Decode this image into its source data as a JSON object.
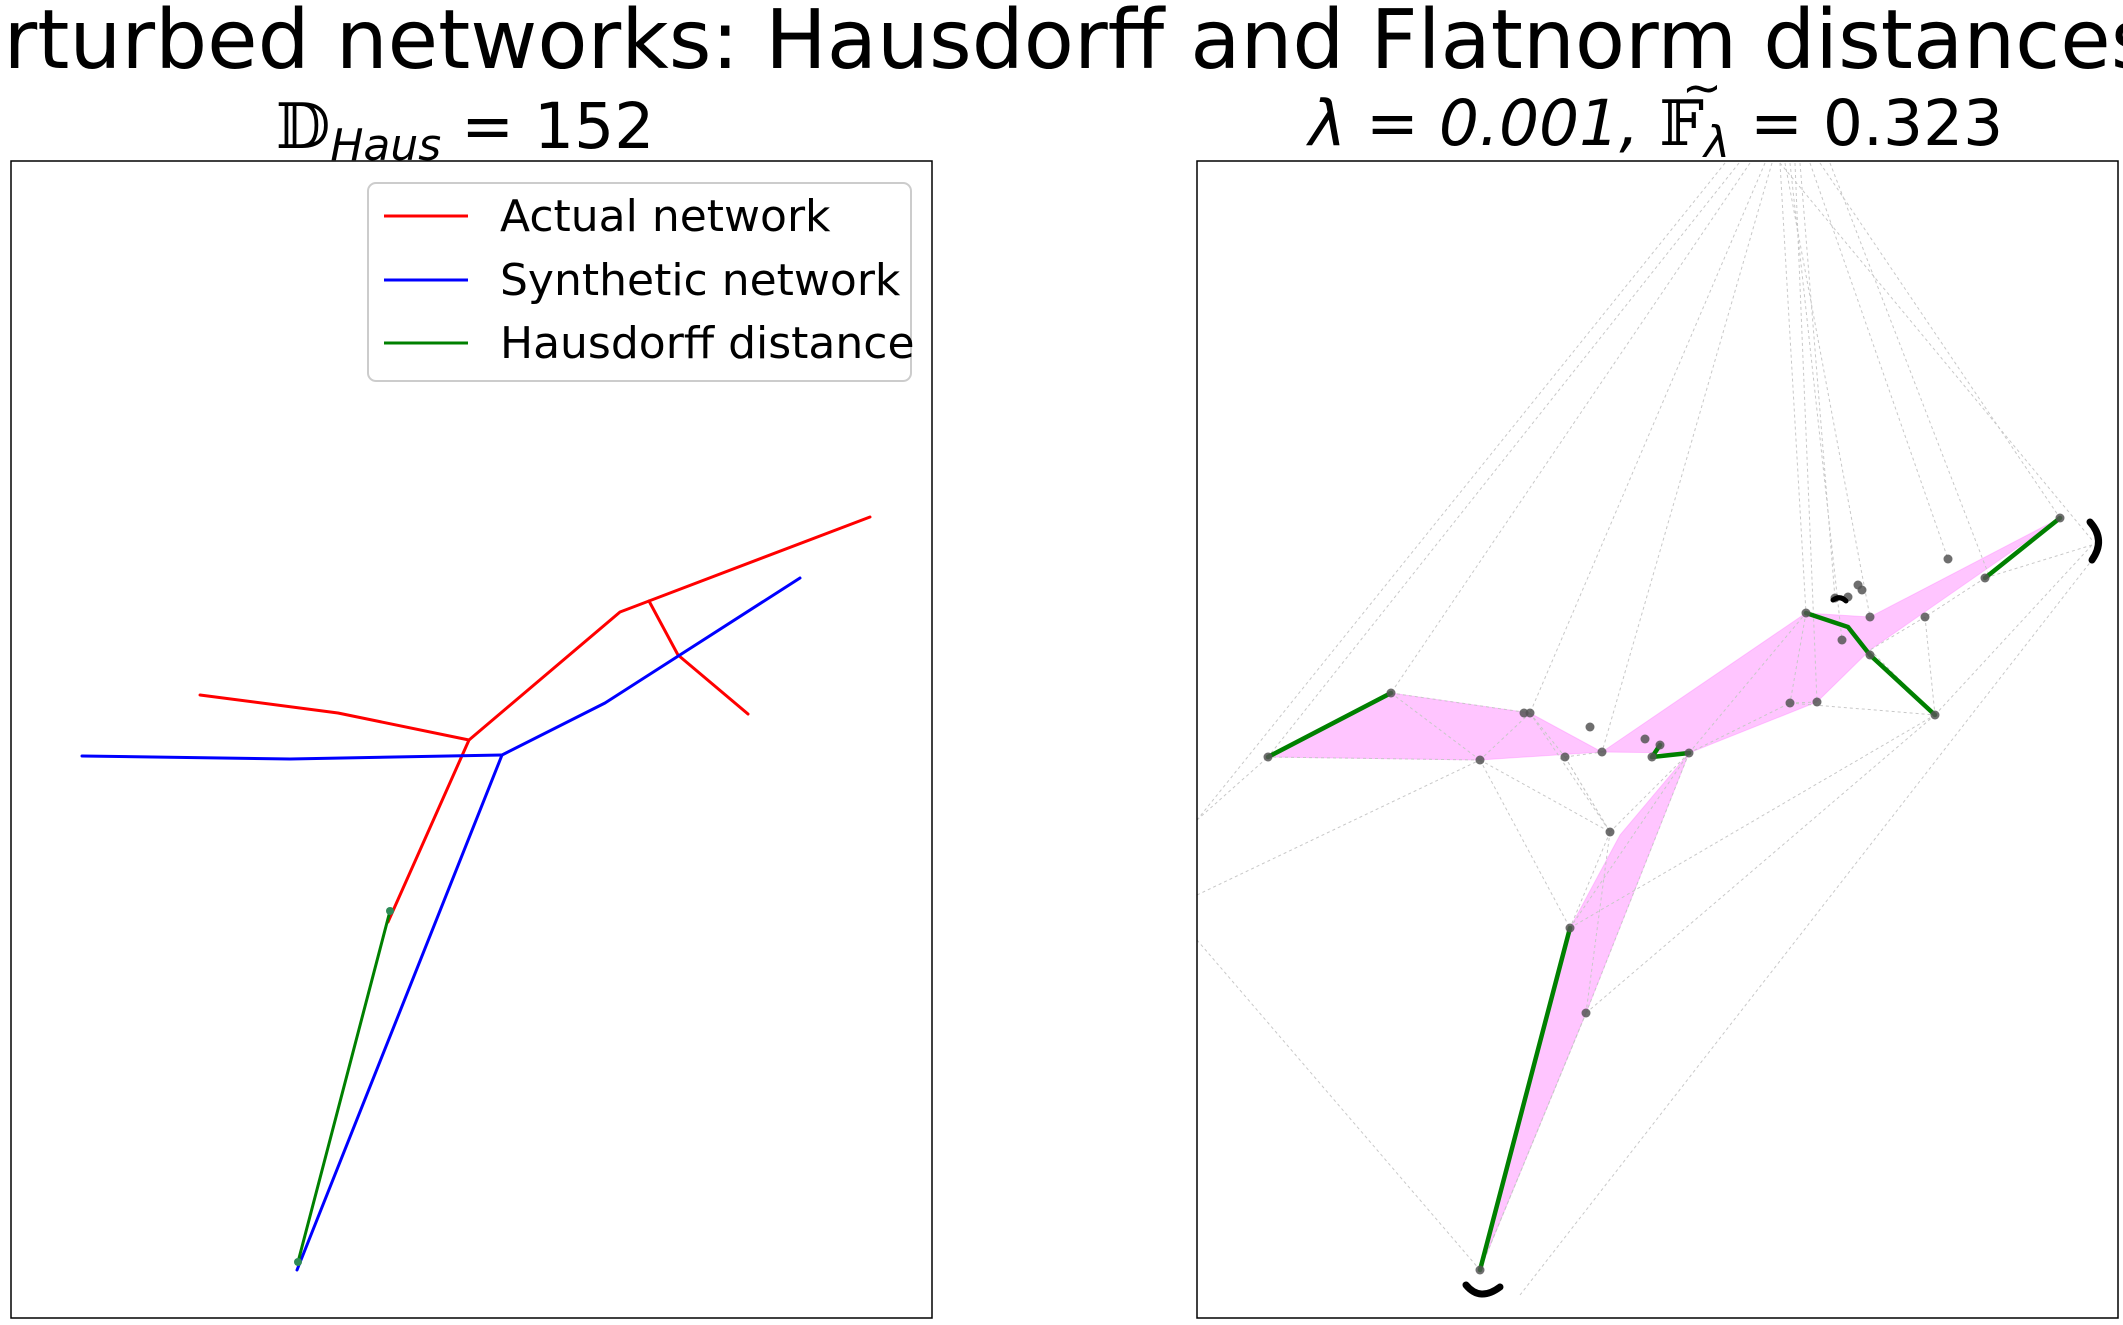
{
  "title": "Perturbed networks: Hausdorff and Flatnorm distances",
  "chart_data": [
    {
      "type": "line",
      "title": "𝔻Haus = 152",
      "title_parts": {
        "symbol": "𝔻",
        "subscript": "Haus",
        "rest": " = 152"
      },
      "axes": {
        "ticks": false,
        "grid": false
      },
      "legend": {
        "position": "top-right",
        "entries": [
          {
            "label": "Actual network",
            "color": "#ff0000"
          },
          {
            "label": "Synthetic network",
            "color": "#0000ff"
          },
          {
            "label": "Hausdorff distance",
            "color": "#008000"
          }
        ]
      },
      "series": [
        {
          "name": "Actual network",
          "color": "#ff0000",
          "segments": [
            [
              [
                200,
                695
              ],
              [
                338,
                713
              ],
              [
                469,
                740
              ]
            ],
            [
              [
                469,
                740
              ],
              [
                620,
                612
              ],
              [
                870,
                517
              ]
            ],
            [
              [
                649,
                601
              ],
              [
                678,
                655
              ],
              [
                748,
                714
              ]
            ],
            [
              [
                469,
                740
              ],
              [
                388,
                922
              ]
            ]
          ]
        },
        {
          "name": "Synthetic network",
          "color": "#0000ff",
          "segments": [
            [
              [
                82,
                756
              ],
              [
                290,
                759
              ],
              [
                502,
                755
              ]
            ],
            [
              [
                502,
                755
              ],
              [
                605,
                703
              ],
              [
                800,
                578
              ]
            ],
            [
              [
                502,
                755
              ],
              [
                297,
                1270
              ]
            ]
          ]
        },
        {
          "name": "Hausdorff distance",
          "color": "#008000",
          "segments": [
            [
              [
                390,
                911
              ],
              [
                298,
                1262
              ]
            ]
          ]
        }
      ]
    },
    {
      "type": "scatter",
      "title": "λ = 0.001, 𝔽λ = 0.323",
      "title_parts": {
        "lambda_part": "λ = 0.001, ",
        "symbol": "𝔽",
        "tilde": "~",
        "subscript": "λ",
        "rest": " = 0.323"
      },
      "axes": {
        "ticks": false,
        "grid": false
      },
      "series": [
        {
          "name": "",
          "color": "#ff66ff",
          "kind": "region",
          "polygons": [
            [
              [
                1268,
                757
              ],
              [
                1391,
                693
              ],
              [
                1530,
                713
              ],
              [
                1602,
                752
              ],
              [
                1480,
                760
              ]
            ],
            [
              [
                1602,
                752
              ],
              [
                1806,
                613
              ],
              [
                1870,
                617
              ],
              [
                2060,
                518
              ],
              [
                1870,
                650
              ],
              [
                1817,
                702
              ],
              [
                1689,
                753
              ]
            ],
            [
              [
                1689,
                753
              ],
              [
                1620,
                835
              ],
              [
                1570,
                928
              ],
              [
                1480,
                1270
              ],
              [
                1586,
                1013
              ]
            ]
          ]
        },
        {
          "name": "",
          "color": "#c8c8c8",
          "kind": "mesh",
          "segments": [
            [
              [
                1739,
                163
              ],
              [
                1268,
                757
              ]
            ],
            [
              [
                1750,
                163
              ],
              [
                1391,
                693
              ]
            ],
            [
              [
                1765,
                163
              ],
              [
                1530,
                713
              ]
            ],
            [
              [
                1772,
                163
              ],
              [
                1602,
                752
              ]
            ],
            [
              [
                1780,
                163
              ],
              [
                1806,
                613
              ]
            ],
            [
              [
                1785,
                163
              ],
              [
                1870,
                617
              ]
            ],
            [
              [
                1790,
                163
              ],
              [
                1842,
                640
              ]
            ],
            [
              [
                1795,
                163
              ],
              [
                1817,
                702
              ]
            ],
            [
              [
                1800,
                163
              ],
              [
                1835,
                598
              ]
            ],
            [
              [
                1810,
                163
              ],
              [
                1948,
                559
              ]
            ],
            [
              [
                1820,
                163
              ],
              [
                2060,
                518
              ]
            ],
            [
              [
                1830,
                163
              ],
              [
                1990,
                578
              ]
            ],
            [
              [
                1725,
                163
              ],
              [
                1197,
                820
              ]
            ],
            [
              [
                1780,
                163
              ],
              [
                2092,
                540
              ]
            ],
            [
              [
                1197,
                820
              ],
              [
                1268,
                757
              ]
            ],
            [
              [
                1197,
                895
              ],
              [
                1480,
                760
              ]
            ],
            [
              [
                1197,
                940
              ],
              [
                1480,
                1270
              ]
            ],
            [
              [
                1268,
                757
              ],
              [
                1391,
                693
              ]
            ],
            [
              [
                1391,
                693
              ],
              [
                1480,
                760
              ]
            ],
            [
              [
                1480,
                760
              ],
              [
                1268,
                757
              ]
            ],
            [
              [
                1391,
                693
              ],
              [
                1530,
                713
              ]
            ],
            [
              [
                1530,
                713
              ],
              [
                1565,
                757
              ]
            ],
            [
              [
                1565,
                757
              ],
              [
                1602,
                752
              ]
            ],
            [
              [
                1530,
                713
              ],
              [
                1480,
                760
              ]
            ],
            [
              [
                1565,
                757
              ],
              [
                1610,
                832
              ]
            ],
            [
              [
                1610,
                832
              ],
              [
                1570,
                928
              ]
            ],
            [
              [
                1480,
                760
              ],
              [
                1570,
                928
              ]
            ],
            [
              [
                1570,
                928
              ],
              [
                1480,
                1270
              ]
            ],
            [
              [
                1586,
                1013
              ],
              [
                1480,
                1270
              ]
            ],
            [
              [
                1586,
                1013
              ],
              [
                1689,
                753
              ]
            ],
            [
              [
                1586,
                1013
              ],
              [
                1935,
                715
              ]
            ],
            [
              [
                1689,
                753
              ],
              [
                1806,
                613
              ]
            ],
            [
              [
                1689,
                753
              ],
              [
                1790,
                703
              ]
            ],
            [
              [
                1790,
                703
              ],
              [
                1935,
                715
              ]
            ],
            [
              [
                1935,
                715
              ],
              [
                2092,
                545
              ]
            ],
            [
              [
                1925,
                617
              ],
              [
                1935,
                715
              ]
            ],
            [
              [
                1870,
                650
              ],
              [
                1935,
                715
              ]
            ],
            [
              [
                1806,
                613
              ],
              [
                1790,
                703
              ]
            ],
            [
              [
                2060,
                518
              ],
              [
                1985,
                578
              ]
            ],
            [
              [
                1985,
                578
              ],
              [
                1925,
                617
              ]
            ],
            [
              [
                1925,
                617
              ],
              [
                1870,
                650
              ]
            ],
            [
              [
                2092,
                545
              ],
              [
                1985,
                578
              ]
            ],
            [
              [
                1790,
                703
              ],
              [
                1817,
                702
              ]
            ],
            [
              [
                1610,
                832
              ],
              [
                1689,
                753
              ]
            ],
            [
              [
                1565,
                757
              ],
              [
                1610,
                832
              ]
            ],
            [
              [
                1530,
                713
              ],
              [
                1610,
                832
              ]
            ],
            [
              [
                1480,
                760
              ],
              [
                1610,
                832
              ]
            ],
            [
              [
                1570,
                928
              ],
              [
                1935,
                715
              ]
            ],
            [
              [
                1480,
                1270
              ],
              [
                1586,
                1013
              ]
            ],
            [
              [
                1610,
                832
              ],
              [
                1586,
                1013
              ]
            ],
            [
              [
                1520,
                1295
              ],
              [
                2092,
                560
              ]
            ],
            [
              [
                1570,
                928
              ],
              [
                1689,
                753
              ]
            ]
          ]
        },
        {
          "name": "",
          "color": "#008000",
          "kind": "flow",
          "segments": [
            [
              [
                1268,
                757
              ],
              [
                1391,
                693
              ]
            ],
            [
              [
                2060,
                518
              ],
              [
                1985,
                578
              ]
            ],
            [
              [
                1806,
                613
              ],
              [
                1848,
                627
              ],
              [
                1870,
                655
              ],
              [
                1935,
                715
              ]
            ],
            [
              [
                1660,
                745
              ],
              [
                1652,
                757
              ]
            ],
            [
              [
                1652,
                757
              ],
              [
                1689,
                753
              ]
            ],
            [
              [
                1570,
                928
              ],
              [
                1480,
                1270
              ]
            ]
          ]
        },
        {
          "name": "",
          "color": "#555555",
          "kind": "nodes",
          "points": [
            [
              1268,
              757
            ],
            [
              1391,
              693
            ],
            [
              1524,
              713
            ],
            [
              1530,
              713
            ],
            [
              1590,
              727
            ],
            [
              1565,
              757
            ],
            [
              1480,
              760
            ],
            [
              1602,
              752
            ],
            [
              1645,
              739
            ],
            [
              1660,
              745
            ],
            [
              1652,
              757
            ],
            [
              1689,
              753
            ],
            [
              1610,
              832
            ],
            [
              1570,
              928
            ],
            [
              1586,
              1013
            ],
            [
              1480,
              1270
            ],
            [
              1806,
              613
            ],
            [
              1835,
              598
            ],
            [
              1848,
              597
            ],
            [
              1862,
              590
            ],
            [
              1870,
              617
            ],
            [
              1842,
              640
            ],
            [
              1870,
              655
            ],
            [
              1817,
              702
            ],
            [
              1790,
              703
            ],
            [
              1925,
              617
            ],
            [
              1948,
              559
            ],
            [
              1985,
              578
            ],
            [
              2060,
              518
            ],
            [
              1935,
              715
            ],
            [
              1858,
              585
            ]
          ]
        }
      ]
    }
  ]
}
